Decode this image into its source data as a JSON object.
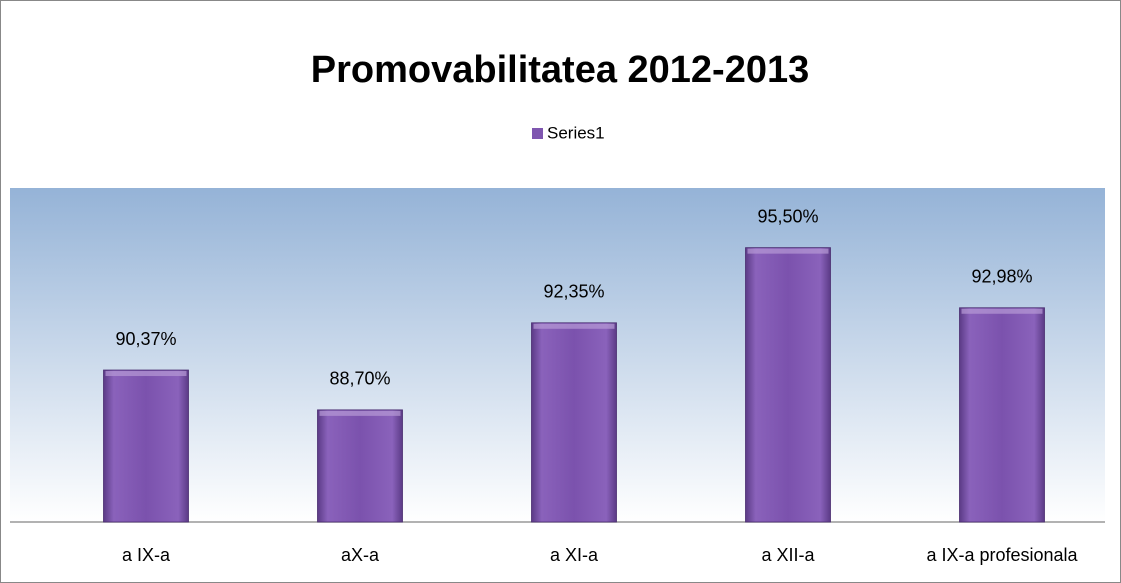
{
  "chart_data": {
    "type": "bar",
    "title": "Promovabilitatea 2012-2013",
    "categories": [
      "a IX-a",
      "aX-a",
      "a XI-a",
      "a XII-a",
      "a IX-a profesionala"
    ],
    "series": [
      {
        "name": "Series1",
        "color": "#7f56b0",
        "values": [
          90.37,
          88.7,
          92.35,
          95.5,
          92.98
        ],
        "value_labels": [
          "90,37%",
          "88,70%",
          "92,35%",
          "95,50%",
          "92,98%"
        ]
      }
    ],
    "ylim": [
      84,
      98
    ],
    "legend": "top"
  }
}
